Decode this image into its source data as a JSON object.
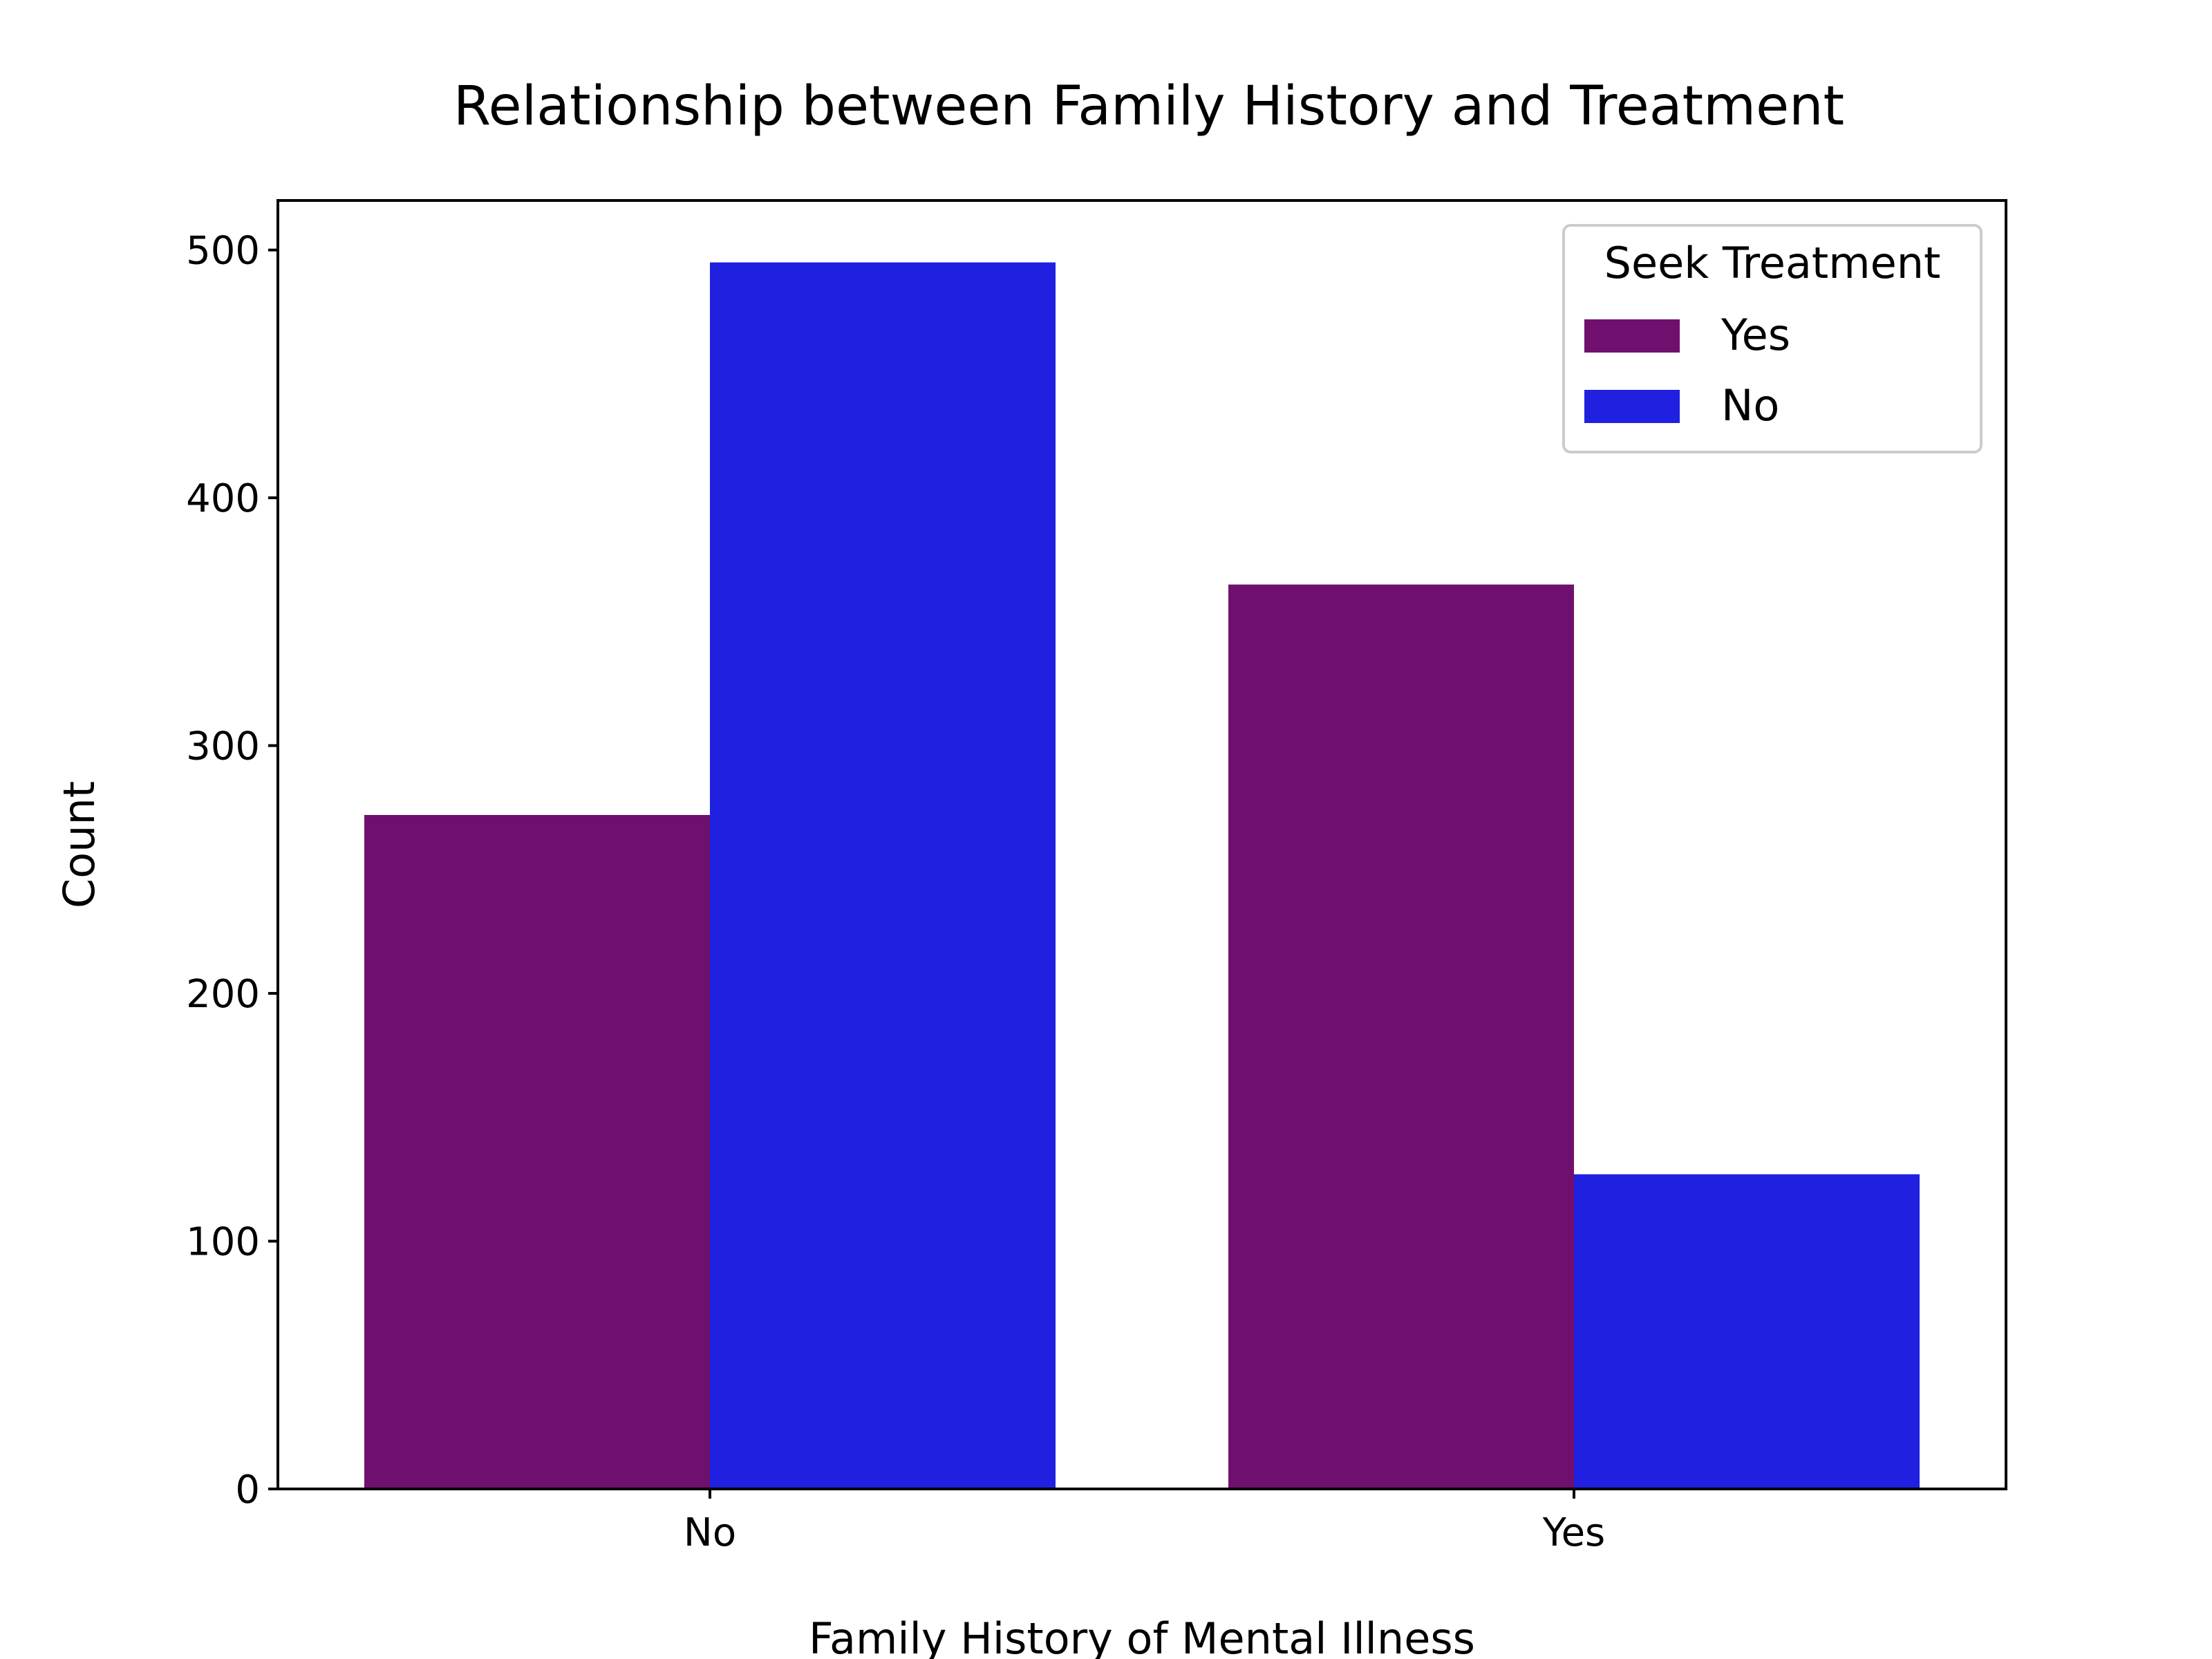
{
  "chart_data": {
    "type": "bar",
    "title": "Relationship between Family History and Treatment",
    "xlabel": "Family History of Mental Illness",
    "ylabel": "Count",
    "categories": [
      "No",
      "Yes"
    ],
    "ylim": [
      0,
      520
    ],
    "yticks": [
      0,
      100,
      200,
      300,
      400,
      500
    ],
    "series": [
      {
        "name": "Yes",
        "values": [
          272,
          365
        ],
        "color": "#70106e"
      },
      {
        "name": "No",
        "values": [
          495,
          127
        ],
        "color": "#2020e0"
      }
    ],
    "legend": {
      "title": "Seek Treatment",
      "position": "top-right"
    },
    "grid": false
  }
}
